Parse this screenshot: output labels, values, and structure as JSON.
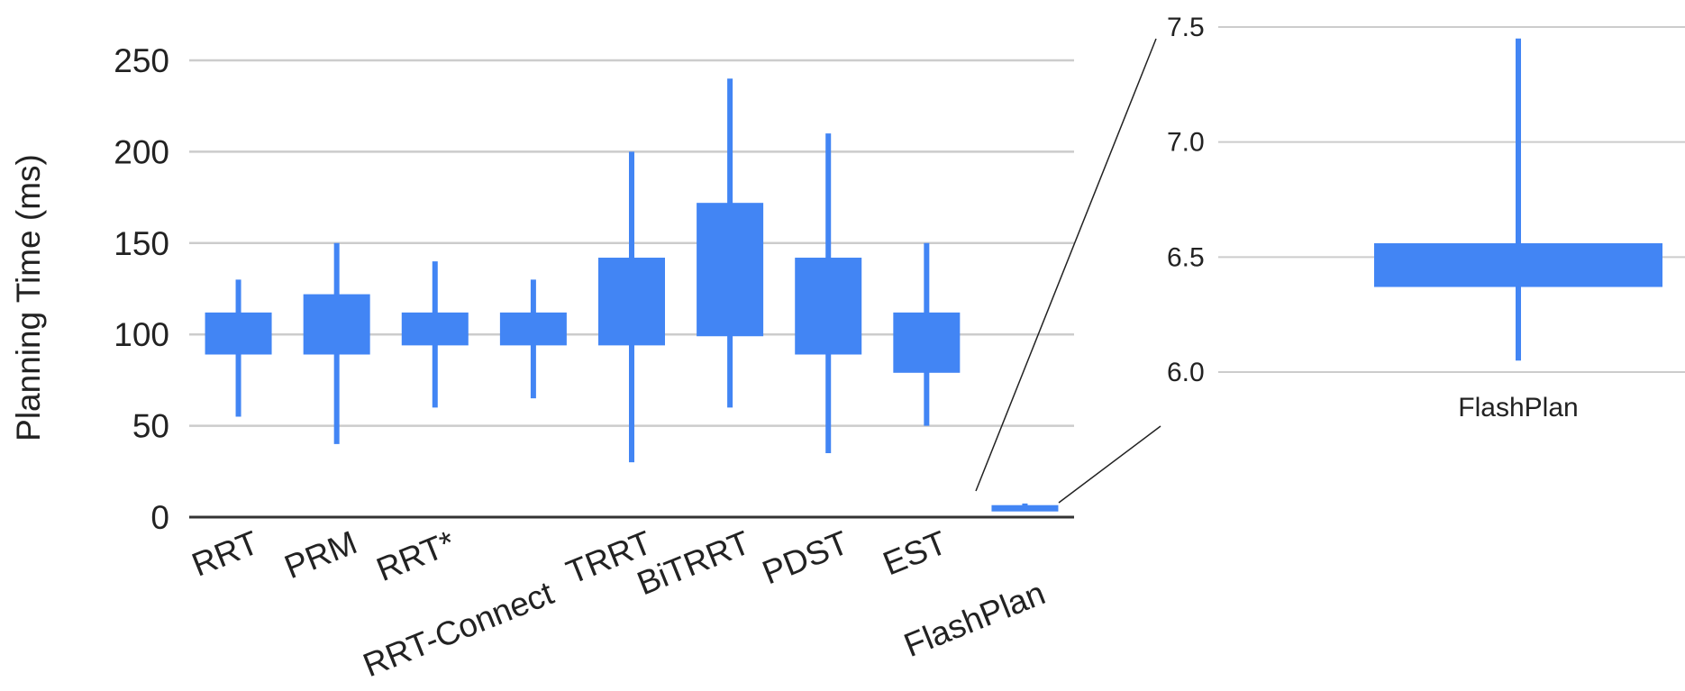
{
  "chart_data": [
    {
      "type": "candlestick",
      "ylabel": "Planning Time (ms)",
      "ylim": [
        0,
        250
      ],
      "yticks": [
        "0",
        "50",
        "100",
        "150",
        "200",
        "250"
      ],
      "grid": true,
      "categories": [
        "RRT",
        "PRM",
        "RRT*",
        "RRT-Connect",
        "TRRT",
        "BiTRRT",
        "PDST",
        "EST",
        "FlashPlan"
      ],
      "low": [
        55,
        40,
        60,
        65,
        30,
        60,
        35,
        50,
        6.05
      ],
      "open": [
        89,
        89,
        94,
        94,
        94,
        99,
        89,
        79,
        6.37
      ],
      "close": [
        112,
        122,
        112,
        112,
        142,
        172,
        142,
        112,
        6.56
      ],
      "high": [
        130,
        150,
        140,
        130,
        200,
        240,
        210,
        150,
        7.45
      ],
      "color": "#4285f4"
    },
    {
      "type": "candlestick",
      "categories": [
        "FlashPlan"
      ],
      "ylim": [
        6.0,
        7.5
      ],
      "yticks": [
        "6.0",
        "6.5",
        "7.0",
        "7.5"
      ],
      "grid": true,
      "low": [
        6.05
      ],
      "open": [
        6.37
      ],
      "close": [
        6.56
      ],
      "high": [
        7.45
      ],
      "color": "#4285f4"
    }
  ]
}
